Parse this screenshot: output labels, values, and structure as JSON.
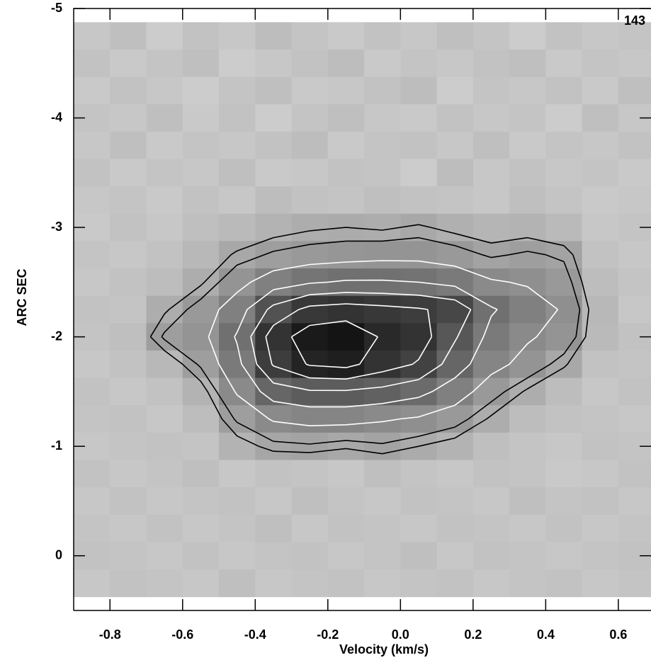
{
  "chart_data": {
    "type": "heatmap",
    "annotation": "143",
    "xlabel": "Velocity (km/s)",
    "ylabel": "ARC SEC",
    "xlim": [
      -0.9,
      0.69
    ],
    "ylim": [
      0.5,
      -5
    ],
    "xticks": [
      -0.8,
      -0.6,
      -0.4,
      -0.2,
      {
        "value": 0,
        "label": "0.0"
      },
      0.2,
      0.4,
      0.6
    ],
    "yticks": [
      -5,
      -4,
      -3,
      -2,
      -1,
      0
    ],
    "x": [
      -0.85,
      -0.75,
      -0.65,
      -0.55,
      -0.45,
      -0.35,
      -0.25,
      -0.15,
      -0.05,
      0.05,
      0.15,
      0.25,
      0.35,
      0.45,
      0.55,
      0.65
    ],
    "y": [
      -4.75,
      -4.5,
      -4.25,
      -4.0,
      -3.75,
      -3.5,
      -3.25,
      -3.0,
      -2.75,
      -2.5,
      -2.25,
      -2.0,
      -1.75,
      -1.5,
      -1.25,
      -1.0,
      -0.75,
      -0.5,
      -0.25,
      0.0,
      0.25
    ],
    "z": [
      [
        22,
        25,
        20,
        24,
        22,
        26,
        23,
        21,
        24,
        22,
        25,
        23,
        20,
        24,
        22,
        23
      ],
      [
        24,
        21,
        23,
        25,
        20,
        22,
        24,
        26,
        21,
        23,
        22,
        24,
        25,
        21,
        23,
        22
      ],
      [
        21,
        24,
        22,
        20,
        23,
        25,
        21,
        22,
        24,
        26,
        20,
        23,
        22,
        24,
        21,
        25
      ],
      [
        23,
        22,
        25,
        21,
        24,
        20,
        23,
        25,
        22,
        21,
        24,
        22,
        23,
        20,
        25,
        22
      ],
      [
        22,
        25,
        21,
        23,
        22,
        24,
        26,
        21,
        23,
        24,
        22,
        25,
        21,
        23,
        22,
        24
      ],
      [
        24,
        21,
        23,
        22,
        25,
        21,
        22,
        24,
        23,
        20,
        26,
        22,
        24,
        22,
        23,
        21
      ],
      [
        22,
        23,
        21,
        24,
        22,
        26,
        24,
        23,
        25,
        24,
        23,
        22,
        25,
        23,
        21,
        22
      ],
      [
        21,
        24,
        22,
        25,
        27,
        30,
        32,
        33,
        32,
        34,
        31,
        29,
        30,
        27,
        22,
        23
      ],
      [
        23,
        22,
        24,
        28,
        34,
        38,
        40,
        41,
        42,
        42,
        40,
        36,
        38,
        36,
        24,
        22
      ],
      [
        22,
        24,
        26,
        32,
        42,
        50,
        54,
        56,
        56,
        55,
        52,
        46,
        44,
        40,
        26,
        23
      ],
      [
        24,
        23,
        32,
        40,
        50,
        68,
        78,
        80,
        78,
        76,
        72,
        56,
        50,
        44,
        28,
        22
      ],
      [
        23,
        25,
        38,
        42,
        56,
        80,
        90,
        92,
        84,
        80,
        66,
        52,
        46,
        42,
        27,
        24
      ],
      [
        22,
        24,
        28,
        38,
        52,
        76,
        86,
        88,
        80,
        74,
        60,
        48,
        42,
        34,
        24,
        23
      ],
      [
        24,
        22,
        24,
        30,
        46,
        60,
        64,
        64,
        62,
        58,
        50,
        40,
        32,
        26,
        22,
        24
      ],
      [
        23,
        24,
        22,
        26,
        38,
        46,
        48,
        48,
        46,
        44,
        40,
        32,
        26,
        24,
        23,
        22
      ],
      [
        22,
        23,
        24,
        23,
        30,
        35,
        36,
        34,
        36,
        33,
        30,
        25,
        23,
        22,
        24,
        23
      ],
      [
        24,
        22,
        23,
        25,
        22,
        24,
        23,
        22,
        25,
        23,
        22,
        24,
        23,
        21,
        22,
        24
      ],
      [
        22,
        24,
        22,
        23,
        24,
        22,
        25,
        23,
        22,
        24,
        23,
        22,
        25,
        23,
        24,
        22
      ],
      [
        23,
        22,
        24,
        22,
        23,
        25,
        22,
        24,
        23,
        22,
        24,
        23,
        22,
        24,
        22,
        23
      ],
      [
        24,
        23,
        22,
        24,
        22,
        23,
        24,
        22,
        23,
        25,
        22,
        24,
        23,
        22,
        23,
        24
      ],
      [
        22,
        24,
        23,
        22,
        25,
        22,
        23,
        24,
        22,
        23,
        24,
        22,
        23,
        24,
        22,
        23
      ]
    ],
    "contour_levels": [
      33,
      37,
      45,
      55,
      65,
      75,
      85
    ],
    "contour_colors": [
      "#000000",
      "#000000",
      "#ffffff",
      "#ffffff",
      "#ffffff",
      "#ffffff",
      "#ffffff"
    ]
  }
}
